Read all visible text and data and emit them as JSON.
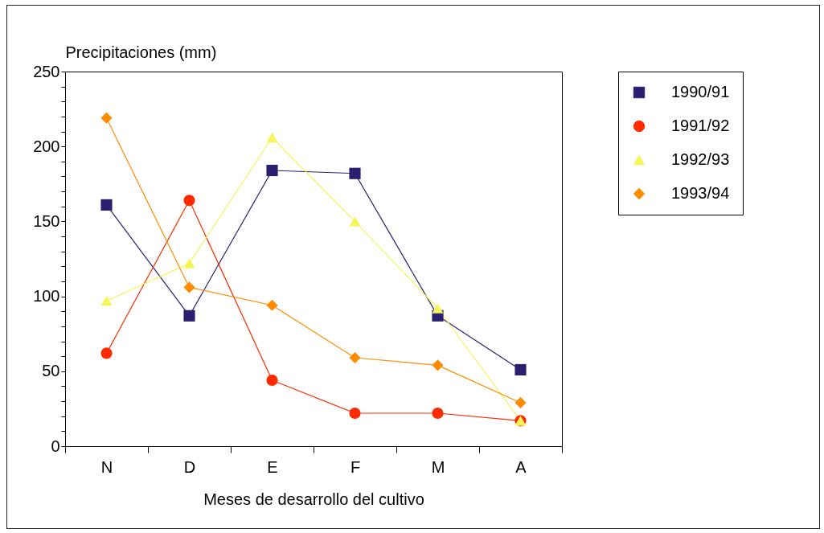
{
  "chart_data": {
    "type": "line",
    "xlabel": "Meses de desarrollo del cultivo",
    "ylabel": "Precipitaciones (mm)",
    "categories": [
      "N",
      "D",
      "E",
      "F",
      "M",
      "A"
    ],
    "ylim": [
      0,
      250
    ],
    "yticks": [
      0,
      {
        "value": 10,
        "label": null
      },
      {
        "value": 20,
        "label": null
      },
      {
        "value": 30,
        "label": null
      },
      {
        "value": 40,
        "label": null
      },
      50,
      {
        "value": 60,
        "label": null
      },
      {
        "value": 70,
        "label": null
      },
      {
        "value": 80,
        "label": null
      },
      {
        "value": 90,
        "label": null
      },
      100,
      {
        "value": 110,
        "label": null
      },
      {
        "value": 120,
        "label": null
      },
      {
        "value": 130,
        "label": null
      },
      {
        "value": 140,
        "label": null
      },
      150,
      {
        "value": 160,
        "label": null
      },
      {
        "value": 170,
        "label": null
      },
      {
        "value": 180,
        "label": null
      },
      {
        "value": 190,
        "label": null
      },
      200,
      {
        "value": 210,
        "label": null
      },
      {
        "value": 220,
        "label": null
      },
      {
        "value": 230,
        "label": null
      },
      {
        "value": 240,
        "label": null
      },
      250
    ],
    "grid": false,
    "legend": "top right",
    "line_style": "solid",
    "series": [
      {
        "name": "1990/91",
        "color": "#2a1f6e",
        "marker": "square",
        "values": [
          161,
          87,
          184,
          182,
          87,
          51
        ]
      },
      {
        "name": "1991/92",
        "color": "#ff2a00",
        "marker": "circle",
        "values": [
          62,
          164,
          44,
          22,
          22,
          17
        ]
      },
      {
        "name": "1992/93",
        "color": "#f5f55a",
        "marker": "triangle",
        "values": [
          97,
          122,
          206,
          150,
          92,
          17
        ]
      },
      {
        "name": "1993/94",
        "color": "#ff8c00",
        "marker": "diamond",
        "values": [
          219,
          106,
          94,
          59,
          54,
          29
        ]
      }
    ]
  }
}
